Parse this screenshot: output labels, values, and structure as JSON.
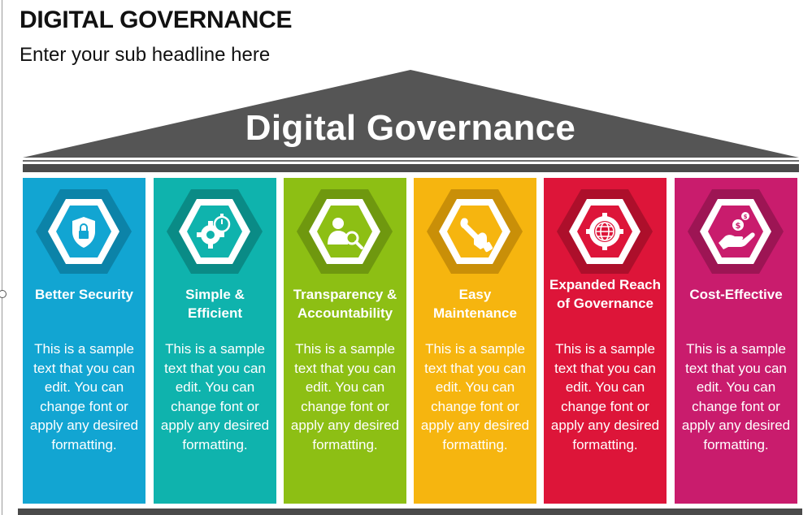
{
  "header": {
    "title": "DIGITAL GOVERNANCE",
    "subtitle": "Enter your sub headline here"
  },
  "roof": {
    "label": "Digital Governance",
    "color": "#555555"
  },
  "pillars": [
    {
      "title": "Better Security",
      "icon": "shield-lock-icon",
      "color": "#12a5d2",
      "dark": "#0c83a8",
      "text": "This is a sample text that you can edit. You can change font or apply any desired formatting."
    },
    {
      "title": "Simple & Efficient",
      "icon": "gear-stopwatch-icon",
      "color": "#0fb3ad",
      "dark": "#0a8b86",
      "text": "This is a sample text that you can edit. You can change font or apply any desired formatting."
    },
    {
      "title": "Transparency & Accountability",
      "icon": "user-search-icon",
      "color": "#8dbf14",
      "dark": "#6f980f",
      "text": "This is a sample text that you can edit. You can change font or apply any desired formatting."
    },
    {
      "title": "Easy Maintenance",
      "icon": "wrench-hand-icon",
      "color": "#f6b50f",
      "dark": "#c98f08",
      "text": "This is a sample text that you can edit. You can change font or apply any desired formatting."
    },
    {
      "title": "Expanded Reach of Governance",
      "icon": "globe-gear-icon",
      "color": "#dd1539",
      "dark": "#ad0f2b",
      "text": "This is a sample text that you can edit. You can change font or apply any desired formatting."
    },
    {
      "title": "Cost-Effective",
      "icon": "hand-coins-icon",
      "color": "#c91c6d",
      "dark": "#9d1554",
      "text": "This is a sample text that you can edit. You can change font or apply any desired formatting."
    }
  ]
}
